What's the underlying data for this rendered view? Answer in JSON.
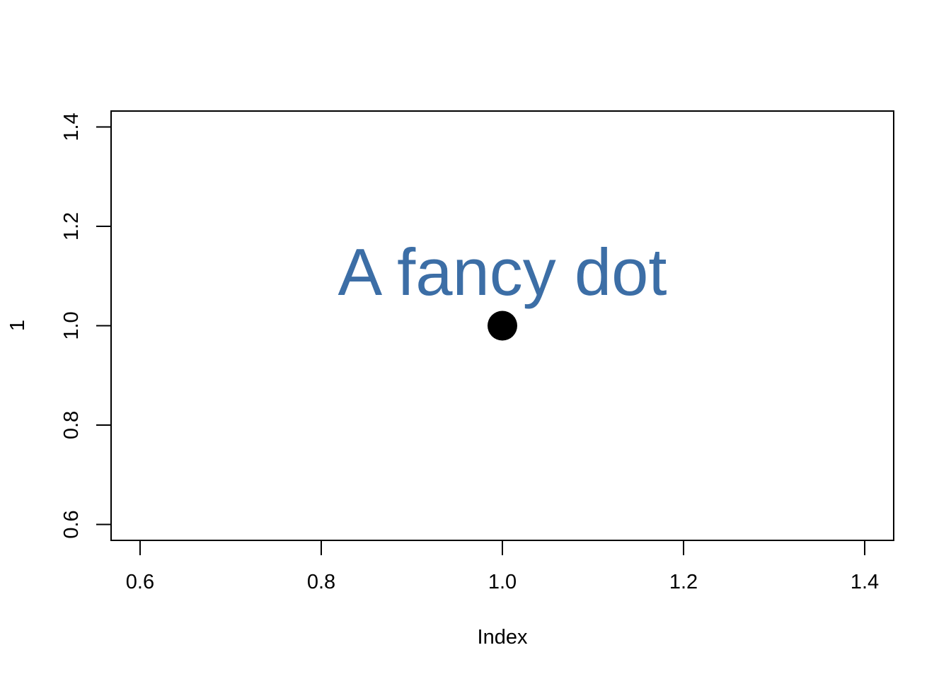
{
  "chart_data": {
    "type": "scatter",
    "title": "",
    "xlabel": "Index",
    "ylabel": "1",
    "xlim": [
      0.568,
      1.432
    ],
    "ylim": [
      0.568,
      1.432
    ],
    "x_ticks": [
      "0.6",
      "0.8",
      "1.0",
      "1.2",
      "1.4"
    ],
    "y_ticks": [
      "0.6",
      "0.8",
      "1.0",
      "1.2",
      "1.4"
    ],
    "grid": false,
    "points": [
      {
        "x": 1.0,
        "y": 1.0
      }
    ],
    "point_color": "#000000",
    "annotation": {
      "text": "A fancy dot",
      "x": 1.0,
      "y": 1.11,
      "color": "#3C6EA6"
    }
  }
}
